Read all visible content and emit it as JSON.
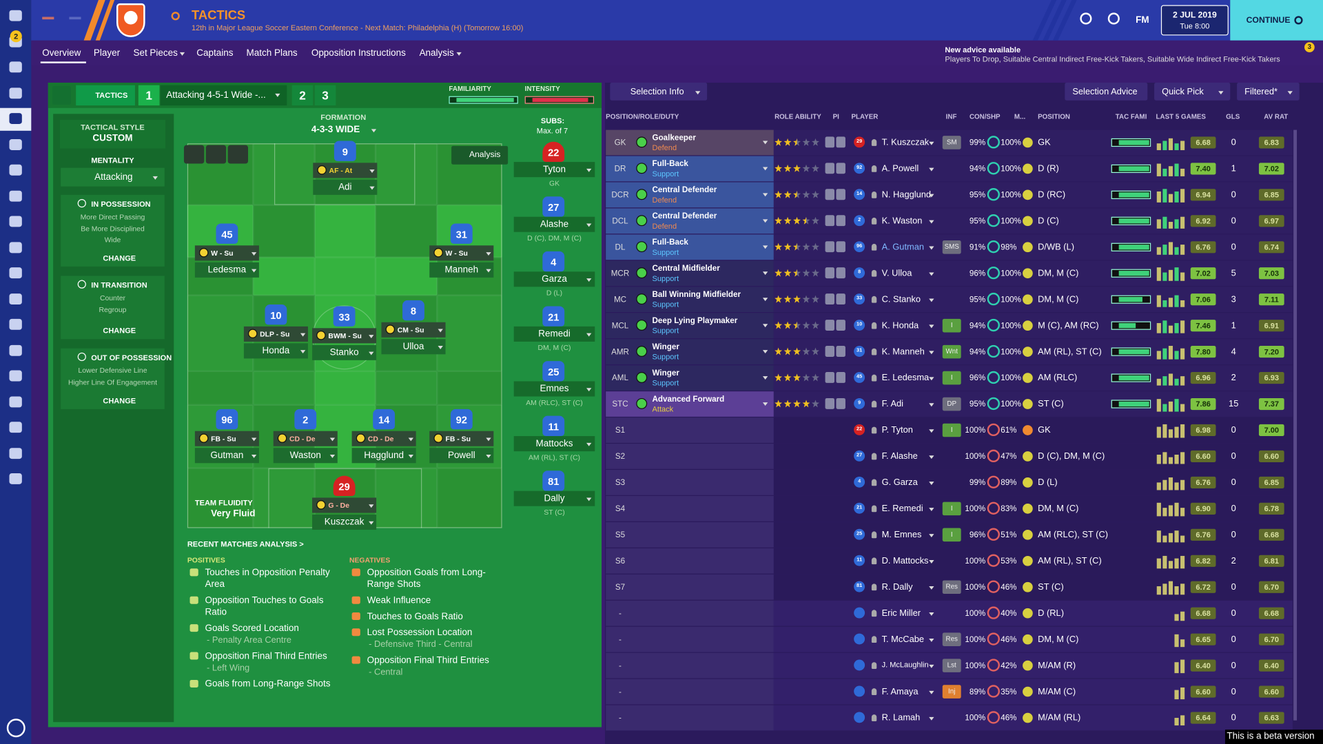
{
  "header": {
    "title": "TACTICS",
    "subtitle": "12th in Major League Soccer Eastern Conference - Next Match: Philadelphia (H) (Tomorrow 16:00)",
    "badge": "2",
    "fm": "FM",
    "date": "2 JUL 2019",
    "time": "Tue 8:00",
    "continue": "CONTINUE"
  },
  "nav": [
    "Overview",
    "Player",
    "Set Pieces",
    "Captains",
    "Match Plans",
    "Opposition Instructions",
    "Analysis"
  ],
  "advice": {
    "title": "New advice available",
    "text": "Players To Drop, Suitable Central Indirect Free-Kick Takers, Suitable Wide Indirect Free-Kick Takers",
    "badge": "3"
  },
  "tactic_bar": {
    "label": "TACTICS",
    "slots": [
      "1",
      "2",
      "3"
    ],
    "name": "Attacking 4-5-1 Wide -...",
    "familiarity": "FAMILIARITY",
    "intensity": "INTENSITY"
  },
  "left_panel": {
    "style_label": "TACTICAL STYLE",
    "style": "CUSTOM",
    "mentality_label": "MENTALITY",
    "mentality": "Attacking",
    "change": "CHANGE",
    "phases": [
      {
        "title": "IN POSSESSION",
        "lines": [
          "More Direct Passing",
          "Be More Disciplined",
          "Wide"
        ]
      },
      {
        "title": "IN TRANSITION",
        "lines": [
          "Counter",
          "Regroup"
        ]
      },
      {
        "title": "OUT OF POSSESSION",
        "lines": [
          "Lower Defensive Line",
          "Higher Line Of Engagement"
        ]
      }
    ]
  },
  "pitch": {
    "formation_label": "FORMATION",
    "formation": "4-3-3 WIDE",
    "analysis": "Analysis",
    "fluidity_label": "TEAM FLUIDITY",
    "fluidity": "Very Fluid",
    "players": [
      {
        "number": "9",
        "role": "AF - At",
        "name": "Adi"
      },
      {
        "number": "45",
        "role": "W - Su",
        "name": "Ledesma"
      },
      {
        "number": "31",
        "role": "W - Su",
        "name": "Manneh"
      },
      {
        "number": "10",
        "role": "DLP - Su",
        "name": "Honda"
      },
      {
        "number": "33",
        "role": "BWM - Su",
        "name": "Stanko"
      },
      {
        "number": "8",
        "role": "CM - Su",
        "name": "Ulloa"
      },
      {
        "number": "96",
        "role": "FB - Su",
        "name": "Gutman"
      },
      {
        "number": "2",
        "role": "CD - De",
        "name": "Waston"
      },
      {
        "number": "14",
        "role": "CD - De",
        "name": "Hagglund"
      },
      {
        "number": "92",
        "role": "FB - Su",
        "name": "Powell"
      },
      {
        "number": "29",
        "role": "G - De",
        "name": "Kuszczak"
      }
    ]
  },
  "subs": {
    "title": "SUBS:",
    "subtitle": "Max. of 7",
    "players": [
      {
        "number": "22",
        "name": "Tyton",
        "positions": "GK"
      },
      {
        "number": "27",
        "name": "Alashe",
        "positions": "D (C), DM, M (C)"
      },
      {
        "number": "4",
        "name": "Garza",
        "positions": "D (L)"
      },
      {
        "number": "21",
        "name": "Remedi",
        "positions": "DM, M (C)"
      },
      {
        "number": "25",
        "name": "Emnes",
        "positions": "AM (RLC), ST (C)"
      },
      {
        "number": "11",
        "name": "Mattocks",
        "positions": "AM (RL), ST (C)"
      },
      {
        "number": "81",
        "name": "Dally",
        "positions": "ST (C)"
      }
    ]
  },
  "analysis": {
    "title": "RECENT MATCHES ANALYSIS >",
    "positives_label": "POSITIVES",
    "negatives_label": "NEGATIVES",
    "positives": [
      {
        "text": "Touches in Opposition Penalty Area"
      },
      {
        "text": "Opposition Touches to Goals Ratio"
      },
      {
        "text": "Goals Scored Location",
        "detail": "- Penalty Area Centre"
      },
      {
        "text": "Opposition Final Third Entries",
        "detail": "- Left Wing"
      },
      {
        "text": "Goals from Long-Range Shots"
      }
    ],
    "negatives": [
      {
        "text": "Opposition Goals from Long-Range Shots"
      },
      {
        "text": "Weak Influence"
      },
      {
        "text": "Touches to Goals Ratio"
      },
      {
        "text": "Lost Possession Location",
        "detail": "- Defensive Third - Central"
      },
      {
        "text": "Opposition Final Third Entries",
        "detail": "- Central"
      }
    ]
  },
  "squad": {
    "toolbar": [
      "Selection Info",
      "Selection Advice",
      "Quick Pick",
      "Filtered*"
    ],
    "columns": [
      "POSITION/ROLE/DUTY",
      "ROLE ABILITY",
      "PI",
      "PLAYER",
      "INF",
      "CON/SHP",
      "M...",
      "POSITION",
      "TAC FAMI",
      "LAST 5 GAMES",
      "GLS",
      "AV RAT"
    ],
    "rows": [
      {
        "pos": "GK",
        "role": "Goalkeeper",
        "duty": "Defend",
        "ability": 2.5,
        "shirt": "29",
        "name": "T. Kuszczak",
        "inf": "SM",
        "con": "99%",
        "shp": "100%",
        "position": "GK",
        "form": "6.68",
        "gls": "0",
        "rating": "6.83"
      },
      {
        "pos": "DR",
        "role": "Full-Back",
        "duty": "Support",
        "ability": 3,
        "shirt": "92",
        "name": "A. Powell",
        "con": "94%",
        "shp": "100%",
        "position": "D (R)",
        "form": "7.40",
        "gls": "1",
        "rating": "7.02"
      },
      {
        "pos": "DCR",
        "role": "Central Defender",
        "duty": "Defend",
        "ability": 2.5,
        "shirt": "14",
        "name": "N. Hagglund",
        "con": "95%",
        "shp": "100%",
        "position": "D (RC)",
        "form": "6.94",
        "gls": "0",
        "rating": "6.85"
      },
      {
        "pos": "DCL",
        "role": "Central Defender",
        "duty": "Defend",
        "ability": 3.5,
        "shirt": "2",
        "name": "K. Waston",
        "con": "95%",
        "shp": "100%",
        "position": "D (C)",
        "form": "6.92",
        "gls": "0",
        "rating": "6.97"
      },
      {
        "pos": "DL",
        "role": "Full-Back",
        "duty": "Support",
        "ability": 2.5,
        "shirt": "96",
        "name": "A. Gutman",
        "inf": "SMS",
        "con": "91%",
        "shp": "98%",
        "position": "D/WB (L)",
        "form": "6.76",
        "gls": "0",
        "rating": "6.74"
      },
      {
        "pos": "MCR",
        "role": "Central Midfielder",
        "duty": "Support",
        "ability": 2.5,
        "shirt": "8",
        "name": "V. Ulloa",
        "con": "96%",
        "shp": "100%",
        "position": "DM, M (C)",
        "form": "7.02",
        "gls": "5",
        "rating": "7.03"
      },
      {
        "pos": "MC",
        "role": "Ball Winning Midfielder",
        "duty": "Support",
        "ability": 3,
        "shirt": "33",
        "name": "C. Stanko",
        "con": "95%",
        "shp": "100%",
        "position": "DM, M (C)",
        "form": "7.06",
        "gls": "3",
        "rating": "7.11"
      },
      {
        "pos": "MCL",
        "role": "Deep Lying Playmaker",
        "duty": "Support",
        "ability": 2.5,
        "shirt": "10",
        "name": "K. Honda",
        "inf": "I",
        "con": "94%",
        "shp": "100%",
        "position": "M (C), AM (RC)",
        "form": "7.46",
        "gls": "1",
        "rating": "6.91"
      },
      {
        "pos": "AMR",
        "role": "Winger",
        "duty": "Support",
        "ability": 3,
        "shirt": "31",
        "name": "K. Manneh",
        "inf": "Wnt",
        "con": "94%",
        "shp": "100%",
        "position": "AM (RL), ST (C)",
        "form": "7.80",
        "gls": "4",
        "rating": "7.20"
      },
      {
        "pos": "AML",
        "role": "Winger",
        "duty": "Support",
        "ability": 3,
        "shirt": "45",
        "name": "E. Ledesma",
        "inf": "I",
        "con": "96%",
        "shp": "100%",
        "position": "AM (RLC)",
        "form": "6.96",
        "gls": "2",
        "rating": "6.93"
      },
      {
        "pos": "STC",
        "role": "Advanced Forward",
        "duty": "Attack",
        "ability": 4,
        "shirt": "9",
        "name": "F. Adi",
        "inf": "DP",
        "con": "95%",
        "shp": "100%",
        "position": "ST (C)",
        "form": "7.86",
        "gls": "15",
        "rating": "7.37"
      },
      {
        "pos": "S1",
        "shirt": "22",
        "name": "P. Tyton",
        "inf": "I",
        "con": "100%",
        "shp": "61%",
        "position": "GK",
        "form": "6.98",
        "gls": "0",
        "rating": "7.00"
      },
      {
        "pos": "S2",
        "shirt": "27",
        "name": "F. Alashe",
        "con": "100%",
        "shp": "47%",
        "position": "D (C), DM, M (C)",
        "form": "6.60",
        "gls": "0",
        "rating": "6.60"
      },
      {
        "pos": "S3",
        "shirt": "4",
        "name": "G. Garza",
        "con": "99%",
        "shp": "89%",
        "position": "D (L)",
        "form": "6.76",
        "gls": "0",
        "rating": "6.85"
      },
      {
        "pos": "S4",
        "shirt": "21",
        "name": "E. Remedi",
        "inf": "I",
        "con": "100%",
        "shp": "83%",
        "position": "DM, M (C)",
        "form": "6.90",
        "gls": "0",
        "rating": "6.78"
      },
      {
        "pos": "S5",
        "shirt": "25",
        "name": "M. Emnes",
        "inf": "I",
        "con": "96%",
        "shp": "51%",
        "position": "AM (RLC), ST (C)",
        "form": "6.76",
        "gls": "0",
        "rating": "6.68"
      },
      {
        "pos": "S6",
        "shirt": "11",
        "name": "D. Mattocks",
        "con": "100%",
        "shp": "53%",
        "position": "AM (RL), ST (C)",
        "form": "6.82",
        "gls": "2",
        "rating": "6.81"
      },
      {
        "pos": "S7",
        "shirt": "81",
        "name": "R. Dally",
        "inf": "Res",
        "con": "100%",
        "shp": "46%",
        "position": "ST (C)",
        "form": "6.72",
        "gls": "0",
        "rating": "6.70"
      },
      {
        "pos": "-",
        "shirt": null,
        "name": "Eric Miller",
        "con": "100%",
        "shp": "40%",
        "position": "D (RL)",
        "form": "6.68",
        "gls": "0",
        "rating": "6.68"
      },
      {
        "pos": "-",
        "shirt": null,
        "name": "T. McCabe",
        "inf": "Res",
        "con": "100%",
        "shp": "46%",
        "position": "DM, M (C)",
        "form": "6.65",
        "gls": "0",
        "rating": "6.70"
      },
      {
        "pos": "-",
        "shirt": null,
        "name": "J. McLaughlin",
        "inf": "Lst",
        "con": "100%",
        "shp": "42%",
        "position": "M/AM (R)",
        "form": "6.40",
        "gls": "0",
        "rating": "6.40"
      },
      {
        "pos": "-",
        "shirt": null,
        "name": "F. Amaya",
        "inf": "Inj",
        "con": "89%",
        "shp": "35%",
        "position": "M/AM (C)",
        "form": "6.60",
        "gls": "0",
        "rating": "6.60"
      },
      {
        "pos": "-",
        "shirt": null,
        "name": "R. Lamah",
        "con": "100%",
        "shp": "46%",
        "position": "M/AM (RL)",
        "form": "6.64",
        "gls": "0",
        "rating": "6.63"
      }
    ]
  },
  "footer": "This is a beta version"
}
